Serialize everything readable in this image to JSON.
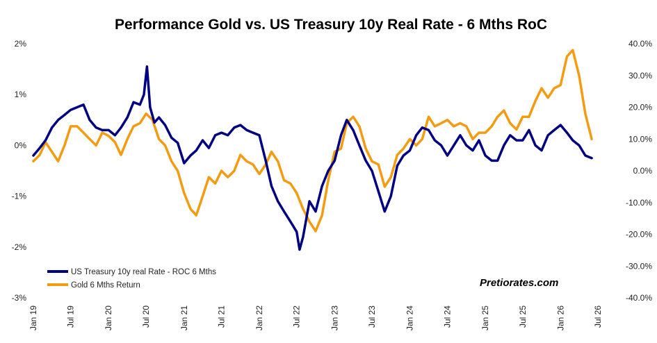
{
  "chart_data": {
    "type": "line",
    "title": "Performance Gold vs. US Treasury 10y Real Rate - 6 Mths RoC",
    "watermark": "Pretiorates.com",
    "x_ticks": [
      "Jan 19",
      "Jul 19",
      "Jan 20",
      "Jul 20",
      "Jan 21",
      "Jul 21",
      "Jan 22",
      "Jul 22",
      "Jan 23",
      "Jul 23",
      "Jan 24",
      "Jul 24",
      "Jan 25",
      "Jul 25",
      "Jan 26",
      "Jul 26"
    ],
    "y_left": {
      "ylim": [
        -3,
        2
      ],
      "ticks": [
        -3,
        -2,
        -1,
        0,
        1,
        2
      ],
      "tick_labels": [
        "-3%",
        "-2%",
        "-1%",
        "0%",
        "1%",
        "2%"
      ]
    },
    "y_right": {
      "ylim": [
        -40,
        40
      ],
      "ticks": [
        -40,
        -30,
        -20,
        -10,
        0,
        10,
        20,
        30,
        40
      ],
      "tick_labels": [
        "-40.0%",
        "-30.0%",
        "-20.0%",
        "-10.0%",
        "0.0%",
        "10.0%",
        "20.0%",
        "30.0%",
        "40.0%"
      ]
    },
    "grid": false,
    "legend_position": "bottom-left",
    "series": [
      {
        "name": "US Treasury 10y real Rate - ROC 6 Mths",
        "axis": "left",
        "color": "#000080",
        "x": [
          "2019-01-01",
          "2019-02-01",
          "2019-03-01",
          "2019-04-01",
          "2019-05-01",
          "2019-06-01",
          "2019-07-01",
          "2019-08-01",
          "2019-09-01",
          "2019-10-01",
          "2019-11-01",
          "2019-12-01",
          "2020-01-01",
          "2020-02-01",
          "2020-03-01",
          "2020-04-01",
          "2020-05-01",
          "2020-06-01",
          "2020-06-20",
          "2020-07-05",
          "2020-07-20",
          "2020-08-10",
          "2020-09-01",
          "2020-10-01",
          "2020-11-01",
          "2020-12-01",
          "2021-01-01",
          "2021-02-01",
          "2021-03-01",
          "2021-04-01",
          "2021-05-01",
          "2021-06-01",
          "2021-07-01",
          "2021-08-01",
          "2021-09-01",
          "2021-10-01",
          "2021-11-01",
          "2021-12-01",
          "2022-01-01",
          "2022-02-01",
          "2022-03-01",
          "2022-04-01",
          "2022-05-01",
          "2022-06-01",
          "2022-07-01",
          "2022-07-15",
          "2022-08-01",
          "2022-09-01",
          "2022-10-01",
          "2022-11-01",
          "2022-12-01",
          "2023-01-01",
          "2023-02-01",
          "2023-03-01",
          "2023-04-01",
          "2023-05-01",
          "2023-06-01",
          "2023-07-01",
          "2023-08-01",
          "2023-09-01",
          "2023-10-01",
          "2023-11-01",
          "2023-12-01",
          "2024-01-01",
          "2024-02-01",
          "2024-03-01",
          "2024-04-01",
          "2024-05-01",
          "2024-06-01",
          "2024-07-01",
          "2024-08-01",
          "2024-09-01",
          "2024-10-01",
          "2024-11-01",
          "2024-12-01",
          "2025-01-01",
          "2025-02-01",
          "2025-03-01",
          "2025-04-01",
          "2025-05-01",
          "2025-06-01",
          "2025-07-01",
          "2025-08-01",
          "2025-09-01",
          "2025-10-01",
          "2025-11-01",
          "2025-12-01",
          "2026-01-01",
          "2026-02-01",
          "2026-03-01",
          "2026-04-01",
          "2026-05-01",
          "2026-06-01"
        ],
        "values": [
          -0.2,
          -0.05,
          0.1,
          0.35,
          0.5,
          0.6,
          0.7,
          0.75,
          0.8,
          0.5,
          0.35,
          0.3,
          0.3,
          0.2,
          0.35,
          0.55,
          0.85,
          0.8,
          1.0,
          1.55,
          0.75,
          0.45,
          0.55,
          0.4,
          0.15,
          0.05,
          -0.35,
          -0.2,
          -0.1,
          0.1,
          -0.05,
          0.2,
          0.25,
          0.2,
          0.35,
          0.4,
          0.3,
          0.25,
          0.2,
          -0.3,
          -0.8,
          -1.1,
          -1.3,
          -1.5,
          -1.7,
          -2.05,
          -1.8,
          -1.1,
          -1.3,
          -0.8,
          -0.5,
          -0.3,
          0.2,
          0.5,
          0.3,
          0.0,
          -0.3,
          -0.5,
          -0.9,
          -1.3,
          -1.0,
          -0.4,
          -0.2,
          -0.1,
          0.2,
          0.35,
          0.3,
          0.1,
          0.0,
          -0.2,
          0.0,
          0.2,
          0.0,
          -0.1,
          0.1,
          -0.2,
          -0.3,
          -0.3,
          0.0,
          0.2,
          0.1,
          0.1,
          0.3,
          0.0,
          -0.1,
          0.2,
          0.3,
          0.4,
          0.25,
          0.1,
          0.0,
          -0.2,
          -0.25
        ]
      },
      {
        "name": "Gold 6 Mths Return",
        "axis": "right",
        "color": "#F39C12",
        "x": [
          "2019-01-01",
          "2019-02-01",
          "2019-03-01",
          "2019-04-01",
          "2019-05-01",
          "2019-06-01",
          "2019-07-01",
          "2019-08-01",
          "2019-09-01",
          "2019-10-01",
          "2019-11-01",
          "2019-12-01",
          "2020-01-01",
          "2020-02-01",
          "2020-03-01",
          "2020-04-01",
          "2020-05-01",
          "2020-06-01",
          "2020-07-01",
          "2020-08-01",
          "2020-09-01",
          "2020-10-01",
          "2020-11-01",
          "2020-12-01",
          "2021-01-01",
          "2021-02-01",
          "2021-03-01",
          "2021-04-01",
          "2021-05-01",
          "2021-06-01",
          "2021-07-01",
          "2021-08-01",
          "2021-09-01",
          "2021-10-01",
          "2021-11-01",
          "2021-12-01",
          "2022-01-01",
          "2022-02-01",
          "2022-03-01",
          "2022-04-01",
          "2022-05-01",
          "2022-06-01",
          "2022-07-01",
          "2022-08-01",
          "2022-09-01",
          "2022-10-01",
          "2022-11-01",
          "2022-12-01",
          "2023-01-01",
          "2023-02-01",
          "2023-03-01",
          "2023-04-01",
          "2023-05-01",
          "2023-06-01",
          "2023-07-01",
          "2023-08-01",
          "2023-09-01",
          "2023-10-01",
          "2023-11-01",
          "2023-12-01",
          "2024-01-01",
          "2024-02-01",
          "2024-03-01",
          "2024-04-01",
          "2024-05-01",
          "2024-06-01",
          "2024-07-01",
          "2024-08-01",
          "2024-09-01",
          "2024-10-01",
          "2024-11-01",
          "2024-12-01",
          "2025-01-01",
          "2025-02-01",
          "2025-03-01",
          "2025-04-01",
          "2025-05-01",
          "2025-06-01",
          "2025-07-01",
          "2025-08-01",
          "2025-09-01",
          "2025-10-01",
          "2025-11-01",
          "2025-12-01",
          "2026-01-01",
          "2026-02-01",
          "2026-03-01",
          "2026-04-01",
          "2026-05-01",
          "2026-06-01"
        ],
        "values": [
          3,
          5,
          9,
          6,
          3,
          8,
          14,
          14,
          12,
          10,
          8,
          12,
          11,
          9,
          5,
          10,
          14,
          15,
          18,
          16,
          10,
          8,
          3,
          0,
          -7,
          -12,
          -14,
          -8,
          -2,
          -4,
          0,
          -2,
          0,
          5,
          3,
          2,
          -1,
          2,
          6,
          3,
          -3,
          -4,
          -7,
          -12,
          -16,
          -19,
          -14,
          -3,
          6,
          7,
          15,
          17,
          14,
          7,
          3,
          2,
          -5,
          -2,
          5,
          7,
          10,
          8,
          10,
          17,
          14,
          15,
          16,
          14,
          15,
          14,
          10,
          12,
          12,
          14,
          17,
          19,
          15,
          13,
          17,
          17,
          22,
          26,
          23,
          26,
          27,
          36,
          38,
          30,
          18,
          10
        ]
      }
    ]
  }
}
